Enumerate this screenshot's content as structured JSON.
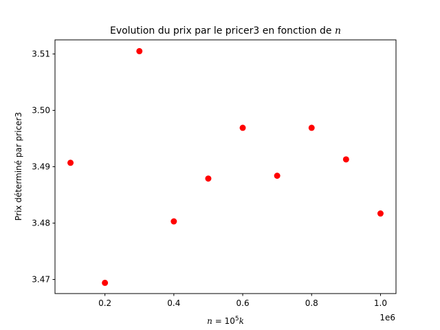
{
  "chart_data": {
    "type": "scatter",
    "title_text": "Evolution du prix par le pricer3 en fonction de ",
    "title_var": "n",
    "xlabel_lhs": "n",
    "xlabel_mid": " = 10",
    "xlabel_exp": "5",
    "xlabel_var": "k",
    "ylabel": "Prix déterminé par pricer3",
    "x_offset_label": "1e6",
    "xlim": [
      55000,
      1045000
    ],
    "ylim": [
      3.4675,
      3.5125
    ],
    "xticks": [
      200000,
      400000,
      600000,
      800000,
      1000000
    ],
    "xtick_labels": [
      "0.2",
      "0.4",
      "0.6",
      "0.8",
      "1.0"
    ],
    "yticks": [
      3.47,
      3.48,
      3.49,
      3.5,
      3.51
    ],
    "ytick_labels": [
      "3.47",
      "3.48",
      "3.49",
      "3.50",
      "3.51"
    ],
    "marker_color": "#ff0000",
    "points": [
      {
        "x": 100000,
        "y": 3.4907
      },
      {
        "x": 200000,
        "y": 3.4694
      },
      {
        "x": 300000,
        "y": 3.5105
      },
      {
        "x": 400000,
        "y": 3.4803
      },
      {
        "x": 500000,
        "y": 3.4879
      },
      {
        "x": 600000,
        "y": 3.4969
      },
      {
        "x": 700000,
        "y": 3.4884
      },
      {
        "x": 800000,
        "y": 3.4969
      },
      {
        "x": 900000,
        "y": 3.4913
      },
      {
        "x": 1000000,
        "y": 3.4817
      }
    ]
  }
}
